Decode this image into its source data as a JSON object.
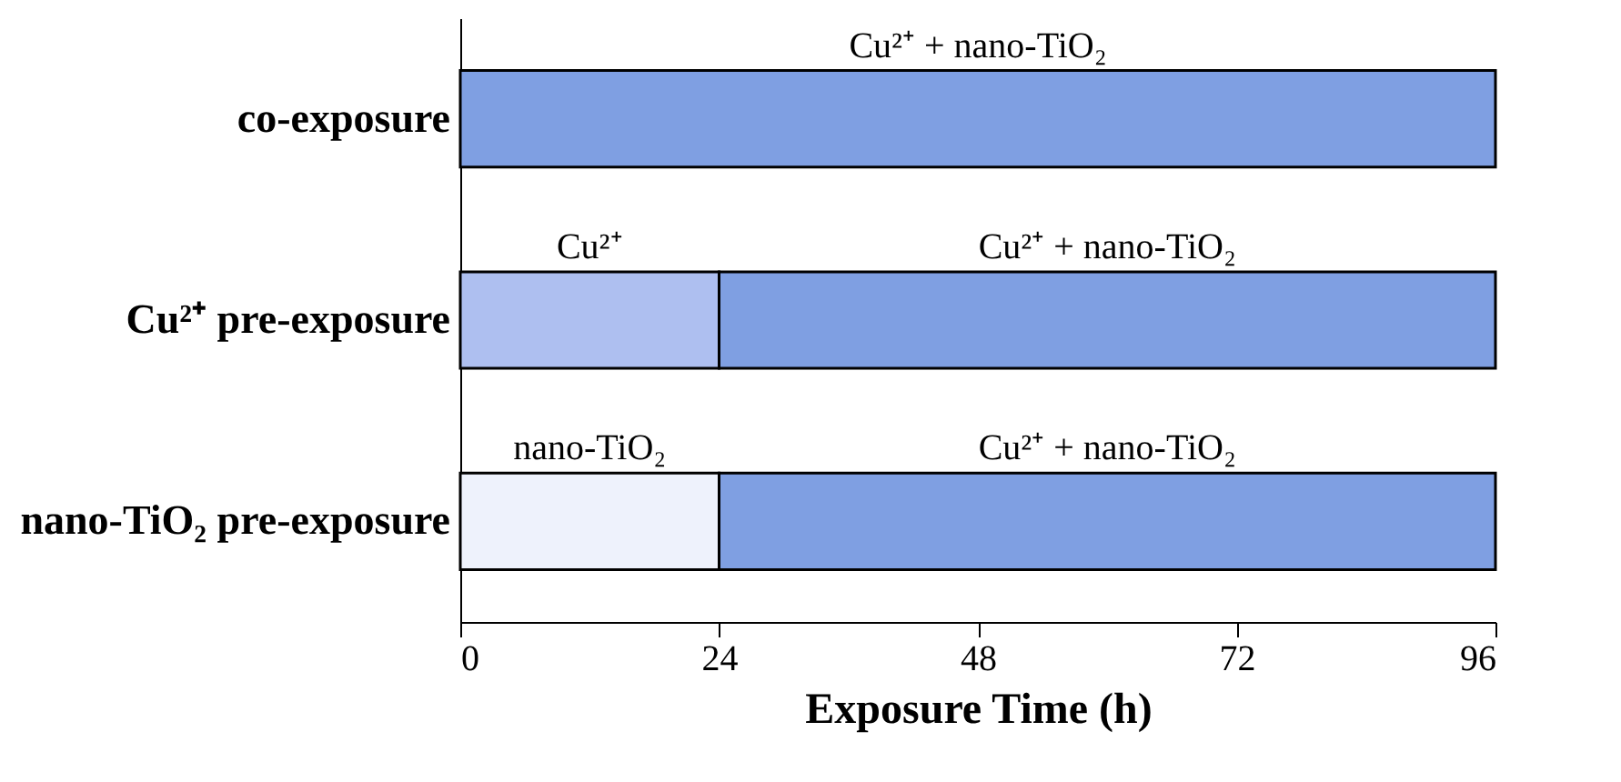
{
  "chart_data": {
    "type": "bar",
    "orientation": "horizontal",
    "stacked": true,
    "xlabel": "Exposure Time (h)",
    "categories": [
      "co-exposure",
      "Cu²⁺ pre-exposure",
      "nano-TiO₂ pre-exposure"
    ],
    "series": [
      {
        "name": "Cu²⁺",
        "color": "#aebff0",
        "values": [
          null,
          24,
          null
        ]
      },
      {
        "name": "nano-TiO₂",
        "color": "#eef2fc",
        "values": [
          null,
          null,
          24
        ]
      },
      {
        "name": "Cu²⁺ + nano-TiO₂",
        "color": "#7f9fe2",
        "values": [
          96,
          72,
          72
        ]
      }
    ],
    "xlim": [
      0,
      96
    ],
    "xticks": [
      0,
      24,
      48,
      72,
      96
    ],
    "grid": false,
    "legend": false
  }
}
